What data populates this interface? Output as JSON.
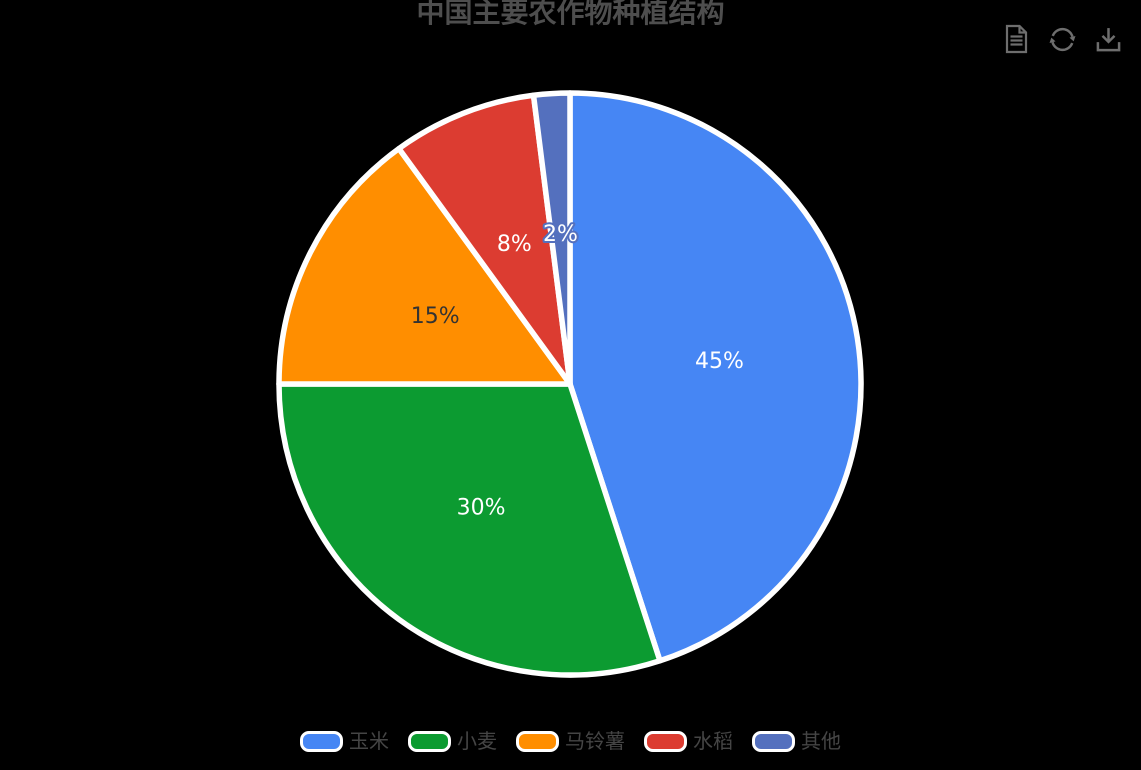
{
  "title": "中国主要农作物种植结构",
  "background_color": "#000000",
  "title_color": "#4E4E4E",
  "toolbar": {
    "icon_color": "#6E6E6E",
    "buttons": [
      {
        "id": "data-view",
        "icon": "document-icon"
      },
      {
        "id": "restore",
        "icon": "refresh-icon"
      },
      {
        "id": "save-as-image",
        "icon": "download-icon"
      }
    ]
  },
  "chart_data": {
    "type": "pie",
    "title": "中国主要农作物种植结构",
    "categories": [
      "玉米",
      "小麦",
      "马铃薯",
      "水稻",
      "其他"
    ],
    "values": [
      45,
      30,
      15,
      8,
      2
    ],
    "unit": "%",
    "data_labels": [
      "45%",
      "30%",
      "15%",
      "8%",
      "2%"
    ],
    "colors": [
      "#4686F4",
      "#0C9B31",
      "#FF8E00",
      "#DC3C31",
      "#5470BE"
    ],
    "label_colors": [
      "#FFFFFF",
      "#FFFFFF",
      "#333333",
      "#FFFFFF",
      "#FFFFFF"
    ],
    "label_outlines": [
      null,
      null,
      null,
      null,
      "#5470BE"
    ],
    "slice_ids": [
      "corn",
      "wheat",
      "potato",
      "rice",
      "other"
    ],
    "start_angle": 90,
    "direction": "clockwise",
    "slice_border_color": "#FFFFFF",
    "label_position": "inside",
    "legend_position": "bottom"
  },
  "legend": {
    "text_color": "#454545",
    "items": [
      {
        "id": "corn",
        "label": "玉米",
        "color": "#4686F4"
      },
      {
        "id": "wheat",
        "label": "小麦",
        "color": "#0C9B31"
      },
      {
        "id": "potato",
        "label": "马铃薯",
        "color": "#FF8E00"
      },
      {
        "id": "rice",
        "label": "水稻",
        "color": "#DC3C31"
      },
      {
        "id": "other",
        "label": "其他",
        "color": "#5470BE"
      }
    ]
  }
}
